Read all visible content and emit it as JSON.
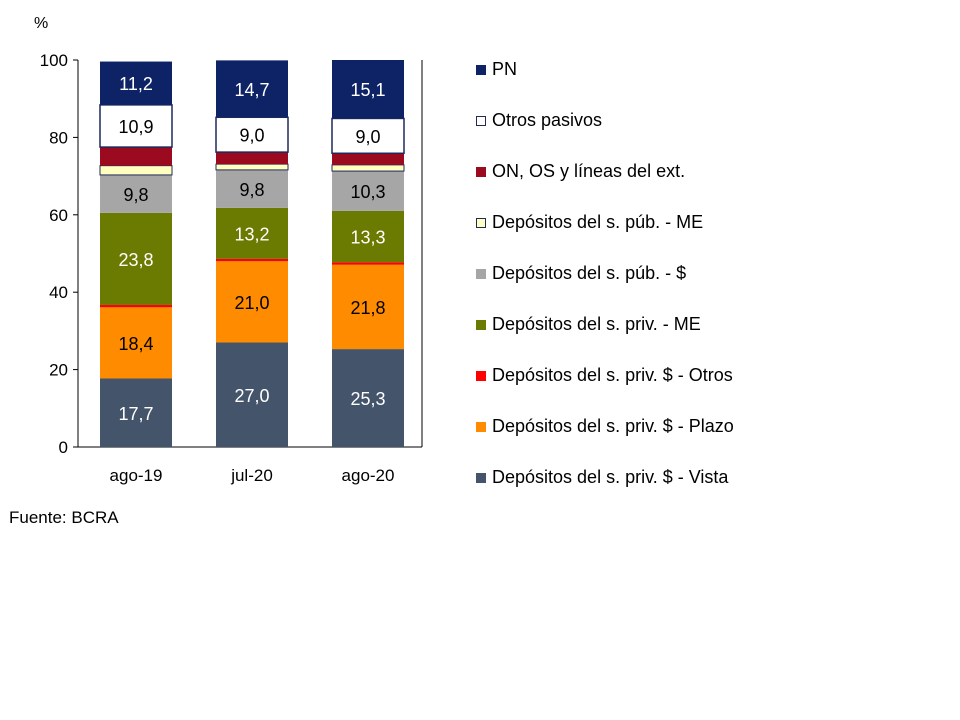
{
  "chart_data": {
    "type": "bar",
    "stacked": true,
    "unit_label": "%",
    "categories": [
      "ago-19",
      "jul-20",
      "ago-20"
    ],
    "ylim": [
      0,
      100
    ],
    "yticks": [
      0,
      20,
      40,
      60,
      80,
      100
    ],
    "series": [
      {
        "name": "Depósitos del s. priv. $ - Vista",
        "color": "#44546a",
        "values": [
          17.7,
          27.0,
          25.3
        ],
        "labels": [
          "17,7",
          "27,0",
          "25,3"
        ],
        "label_color": "#ffffff"
      },
      {
        "name": "Depósitos del s. priv. $ - Plazo",
        "color": "#ff8c00",
        "values": [
          18.4,
          21.0,
          21.8
        ],
        "labels": [
          "18,4",
          "21,0",
          "21,8"
        ],
        "label_color": "#000000"
      },
      {
        "name": "Depósitos del s. priv. $ - Otros",
        "color": "#ff0000",
        "values": [
          0.6,
          0.6,
          0.6
        ],
        "labels": [
          "",
          "",
          ""
        ],
        "label_color": "#000000"
      },
      {
        "name": "Depósitos del s. priv. - ME",
        "color": "#6b7a00",
        "values": [
          23.8,
          13.2,
          13.3
        ],
        "labels": [
          "23,8",
          "13,2",
          "13,3"
        ],
        "label_color": "#ffffff"
      },
      {
        "name": "Depósitos del s. púb. - $",
        "color": "#a6a6a6",
        "values": [
          9.8,
          9.8,
          10.3
        ],
        "labels": [
          "9,8",
          "9,8",
          "10,3"
        ],
        "label_color": "#000000"
      },
      {
        "name": "Depósitos del s. púb. - ME",
        "color": "#ffffc0",
        "values": [
          2.4,
          1.5,
          1.6
        ],
        "labels": [
          "",
          "",
          ""
        ],
        "label_color": "#000000"
      },
      {
        "name": "ON, OS y líneas del ext.",
        "color": "#9b0a1e",
        "values": [
          4.8,
          3.1,
          3.0
        ],
        "labels": [
          "",
          "",
          ""
        ],
        "label_color": "#ffffff"
      },
      {
        "name": "Otros pasivos",
        "color": "#ffffff",
        "values": [
          10.9,
          9.0,
          9.0
        ],
        "labels": [
          "10,9",
          "9,0",
          "9,0"
        ],
        "label_color": "#000000"
      },
      {
        "name": "PN",
        "color": "#0e2366",
        "values": [
          11.2,
          14.7,
          15.1
        ],
        "labels": [
          "11,2",
          "14,7",
          "15,1"
        ],
        "label_color": "#ffffff"
      }
    ],
    "legend_position": "right",
    "source": "Fuente: BCRA"
  }
}
